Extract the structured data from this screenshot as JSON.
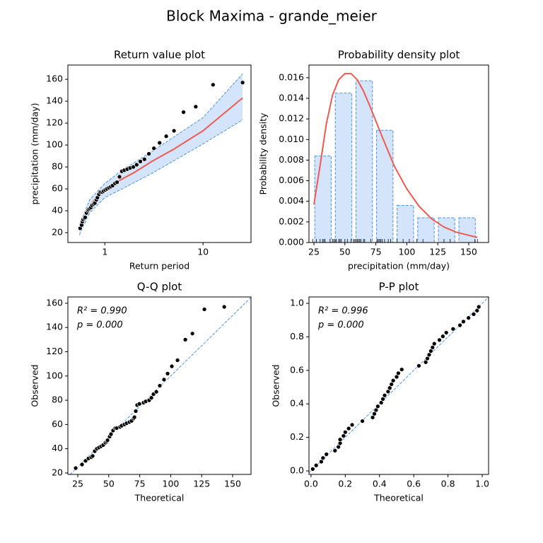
{
  "title": "Block Maxima - grande_meier",
  "chart_data": [
    {
      "type": "return",
      "title": "Return value plot",
      "xlabel": "Return period",
      "ylabel": "precipitation (mm/day)",
      "xscale": "log",
      "xlim": [
        0.42,
        30.8
      ],
      "ylim": [
        11,
        173
      ],
      "xticks": [
        1,
        10
      ],
      "yticks": [
        20,
        40,
        60,
        80,
        100,
        120,
        140,
        160
      ],
      "points": {
        "x": [
          0.56,
          0.58,
          0.59,
          0.6,
          0.62,
          0.63,
          0.65,
          0.67,
          0.68,
          0.7,
          0.72,
          0.74,
          0.77,
          0.79,
          0.82,
          0.84,
          0.87,
          0.9,
          0.94,
          0.97,
          1.01,
          1.05,
          1.1,
          1.15,
          1.2,
          1.27,
          1.33,
          1.41,
          1.49,
          1.58,
          1.69,
          1.81,
          1.95,
          2.11,
          2.3,
          2.53,
          2.81,
          3.16,
          3.61,
          4.22,
          5.06,
          6.33,
          8.43,
          12.65,
          25.3
        ],
        "y": [
          24,
          27,
          30,
          32,
          33,
          34,
          38,
          40,
          41,
          42,
          43,
          45,
          46,
          47,
          50,
          52,
          55,
          57,
          57,
          58,
          59,
          60,
          61,
          62,
          63,
          65,
          66,
          71,
          76,
          77,
          78,
          79,
          80,
          82,
          85,
          87,
          92,
          97,
          102,
          108,
          113,
          130,
          135,
          155,
          157
        ],
        "color": "#000000"
      },
      "fit": {
        "x": [
          0.55,
          0.6,
          0.7,
          0.8,
          1,
          1.5,
          2,
          3,
          5,
          10,
          25.3
        ],
        "y": [
          22,
          33,
          44,
          51,
          60,
          69,
          75,
          85,
          96,
          113,
          143
        ],
        "color": "#ee5a4f"
      },
      "ci": {
        "x": [
          0.55,
          0.7,
          1,
          1.5,
          3,
          10,
          25.3
        ],
        "upper": [
          27,
          50,
          65,
          77,
          94,
          125,
          165
        ],
        "lower": [
          18,
          38,
          52,
          60,
          74,
          101,
          123
        ],
        "color": "#4d94e8",
        "fill": "#d3e4fb"
      }
    },
    {
      "type": "histogram",
      "title": "Probability density plot",
      "xlabel": "precipitation (mm/day)",
      "ylabel": "Probability density",
      "xlim": [
        21,
        166
      ],
      "ylim": [
        0,
        0.01723
      ],
      "xticks": [
        25,
        50,
        75,
        100,
        125,
        150
      ],
      "yticks": [
        {
          "value": 0,
          "label": "0.000"
        },
        0.002,
        0.004,
        0.006,
        0.008,
        {
          "value": 0.01,
          "label": "0.010"
        },
        0.012,
        0.014,
        0.016
      ],
      "bins": [
        24,
        40.6,
        57.3,
        73.9,
        90.5,
        107.1,
        123.8,
        140.4,
        157
      ],
      "values": [
        0.0084,
        0.0145,
        0.0157,
        0.0109,
        0.0036,
        0.0024,
        0.0024,
        0.0024
      ],
      "color": "#d3e4fb",
      "edgecolor": "#4d94e8",
      "curve": {
        "x": [
          25,
          30,
          35,
          40,
          45,
          50,
          55,
          60,
          65,
          70,
          80,
          90,
          100,
          110,
          120,
          130,
          140,
          150,
          157
        ],
        "y": [
          0.0037,
          0.0075,
          0.0115,
          0.0143,
          0.0158,
          0.0164,
          0.0164,
          0.0158,
          0.0147,
          0.0133,
          0.0103,
          0.0074,
          0.0052,
          0.0035,
          0.0023,
          0.0015,
          0.001,
          0.0007,
          0.0005
        ],
        "color": "#ee5a4f"
      }
    },
    {
      "type": "qq",
      "title": "Q-Q plot",
      "xlabel": "Theoretical",
      "ylabel": "Observed",
      "xlim": [
        17,
        164.8
      ],
      "ylim": [
        18.8,
        165.2
      ],
      "xticks": [
        25,
        50,
        75,
        100,
        125,
        150
      ],
      "yticks": [
        20,
        40,
        60,
        80,
        100,
        120,
        140,
        160
      ],
      "annotations": [
        "R² = 0.990",
        "p = 0.000"
      ],
      "color": "#000000",
      "line_color": "#4d94e8",
      "x": [
        23.3,
        28.4,
        31.3,
        33.6,
        35.8,
        37,
        38.7,
        40.4,
        42.1,
        43.8,
        45.5,
        47.3,
        48.4,
        49,
        50.7,
        51.8,
        53.5,
        55.3,
        56.4,
        59.2,
        60.4,
        62.7,
        64.4,
        66.7,
        68.4,
        70.1,
        70.7,
        71.8,
        72.9,
        74.7,
        78.1,
        79.8,
        82.6,
        84.4,
        86.1,
        88.4,
        91.2,
        94.6,
        97.5,
        100.9,
        105.5,
        111.8,
        117.5,
        127.2,
        143.2
      ],
      "y": [
        24,
        27,
        30,
        32,
        33,
        34,
        38,
        40,
        41,
        42,
        43,
        45,
        46,
        47,
        50,
        52,
        55,
        57,
        57,
        58,
        59,
        60,
        61,
        62,
        63,
        65,
        66,
        71,
        76,
        77,
        78,
        79,
        80,
        82,
        85,
        87,
        92,
        97,
        102,
        108,
        113,
        130,
        135,
        155,
        157
      ]
    },
    {
      "type": "pp",
      "title": "P-P plot",
      "xlabel": "Theoretical",
      "ylabel": "Observed",
      "xlim": [
        -0.012,
        1.037
      ],
      "ylim": [
        -0.021,
        1.038
      ],
      "xticks": [
        {
          "value": 0,
          "label": "0.0"
        },
        0.2,
        0.4,
        0.6,
        0.8,
        {
          "value": 1,
          "label": "1.0"
        }
      ],
      "yticks": [
        {
          "value": 0,
          "label": "0.0"
        },
        0.2,
        0.4,
        0.6,
        0.8,
        {
          "value": 1,
          "label": "1.0"
        }
      ],
      "annotations": [
        "R² = 0.996",
        "p = 0.000"
      ],
      "color": "#000000",
      "line_color": "#4d94e8",
      "x": [
        0.01,
        0.03,
        0.06,
        0.07,
        0.09,
        0.14,
        0.16,
        0.17,
        0.17,
        0.19,
        0.2,
        0.22,
        0.24,
        0.3,
        0.36,
        0.37,
        0.38,
        0.39,
        0.41,
        0.42,
        0.43,
        0.45,
        0.46,
        0.47,
        0.48,
        0.5,
        0.51,
        0.53,
        0.63,
        0.67,
        0.68,
        0.69,
        0.7,
        0.71,
        0.72,
        0.75,
        0.77,
        0.79,
        0.83,
        0.87,
        0.89,
        0.92,
        0.95,
        0.97,
        0.98
      ],
      "y": [
        0.011,
        0.033,
        0.055,
        0.077,
        0.099,
        0.121,
        0.143,
        0.165,
        0.187,
        0.209,
        0.231,
        0.253,
        0.275,
        0.297,
        0.319,
        0.341,
        0.363,
        0.385,
        0.407,
        0.429,
        0.451,
        0.473,
        0.495,
        0.517,
        0.539,
        0.561,
        0.583,
        0.605,
        0.627,
        0.649,
        0.671,
        0.693,
        0.715,
        0.737,
        0.759,
        0.781,
        0.803,
        0.825,
        0.847,
        0.869,
        0.891,
        0.913,
        0.935,
        0.957,
        0.979
      ]
    }
  ]
}
